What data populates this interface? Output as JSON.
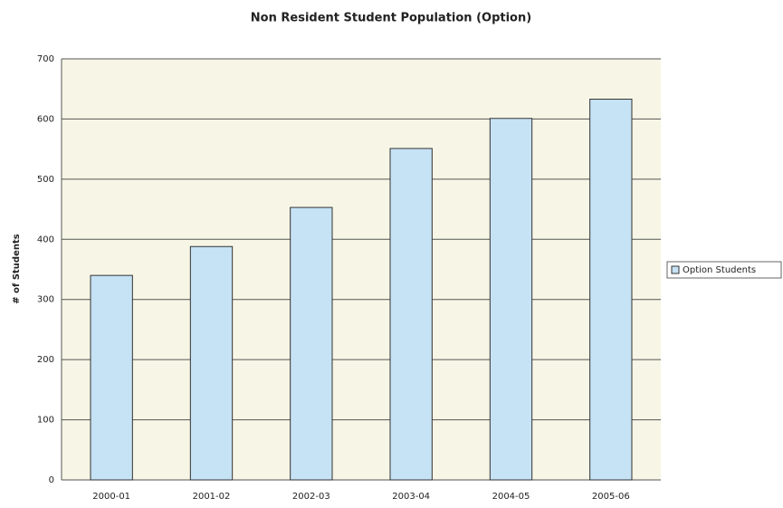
{
  "chart_data": {
    "type": "bar",
    "title": "Non Resident Student Population (Option)",
    "y_label": "# of Students",
    "categories": [
      "2000-01",
      "2001-02",
      "2002-03",
      "2003-04",
      "2004-05",
      "2005-06"
    ],
    "series": [
      {
        "name": "Option Students",
        "color": "#c6e2f5",
        "values": [
          340,
          388,
          453,
          551,
          601,
          633
        ]
      }
    ],
    "ylim": [
      0,
      700
    ],
    "yticks": [
      0,
      100,
      200,
      300,
      400,
      500,
      600,
      700
    ],
    "grid": true,
    "legend": "right"
  }
}
